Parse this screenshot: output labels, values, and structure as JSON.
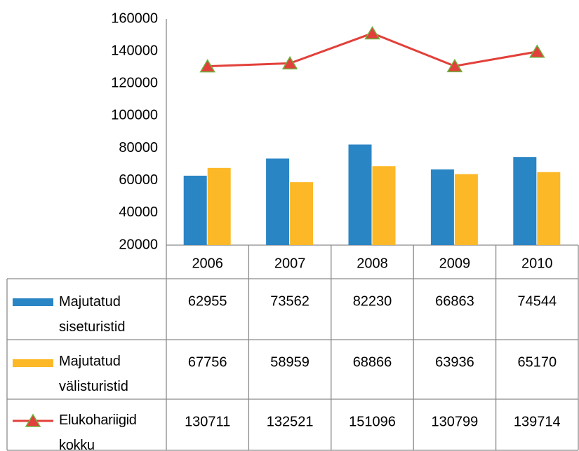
{
  "chart_data": {
    "type": "bar",
    "categories": [
      "2006",
      "2007",
      "2008",
      "2009",
      "2010"
    ],
    "series": [
      {
        "name": "Majutatud siseturistid",
        "color": "#2a85c5",
        "values": [
          62955,
          73562,
          82230,
          66863,
          74544
        ]
      },
      {
        "name": "Majutatud välisturistid",
        "color": "#fdb827",
        "values": [
          67756,
          58959,
          68866,
          63936,
          65170
        ]
      },
      {
        "name": "Elukohariigid kokku",
        "type": "line",
        "color": "#e2403a",
        "marker_edge": "#6fb13f",
        "values": [
          130711,
          132521,
          151096,
          130799,
          139714
        ]
      }
    ],
    "ylim": [
      20000,
      160000
    ],
    "yticks": [
      20000,
      40000,
      60000,
      80000,
      100000,
      120000,
      140000,
      160000
    ],
    "grid": false
  }
}
